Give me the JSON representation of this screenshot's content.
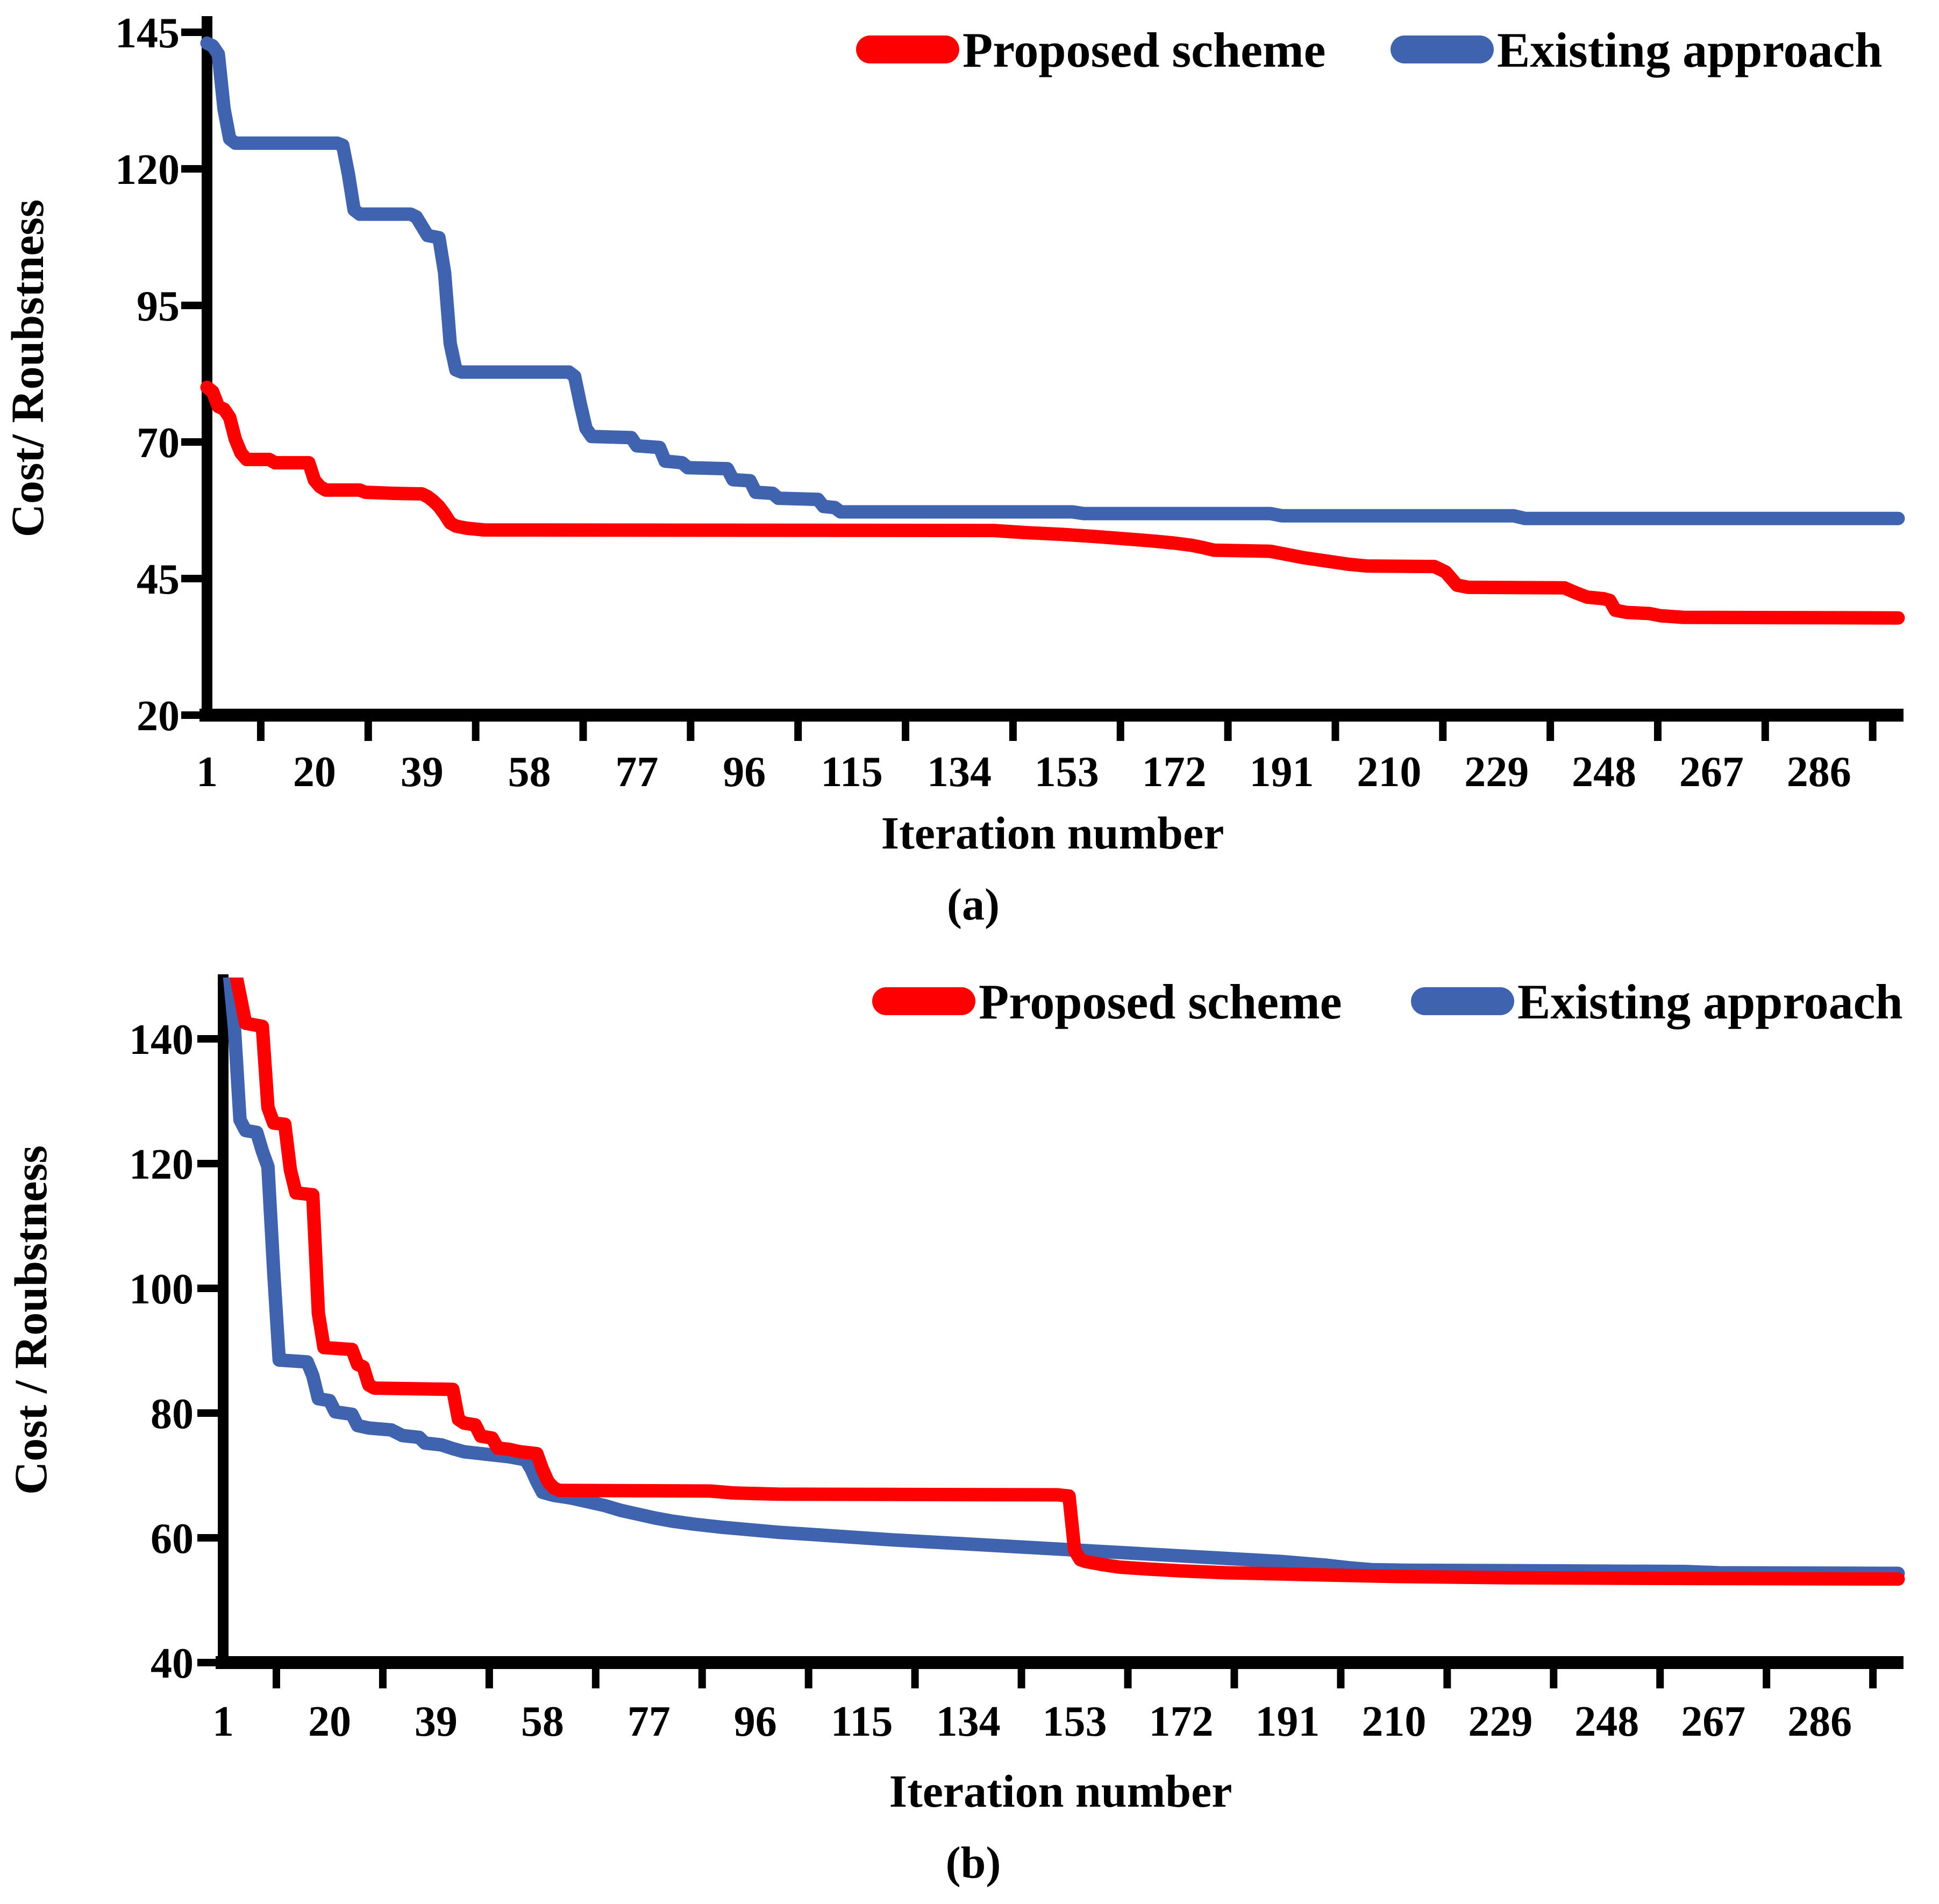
{
  "figure": {
    "background": "#FFFFFF",
    "axis_color": "#000000",
    "accent_red": "#FF0000",
    "accent_blue": "#3F63AE"
  },
  "chart_data": [
    {
      "type": "line",
      "panel": "a",
      "caption": "(a)",
      "xlabel": "Iteration number",
      "ylabel": "Cost/ Roubstness",
      "x_ticks": [
        1,
        20,
        39,
        58,
        77,
        96,
        115,
        134,
        153,
        172,
        191,
        210,
        229,
        248,
        267,
        286
      ],
      "y_ticks": [
        145,
        120,
        95,
        70,
        45,
        20
      ],
      "xlim": [
        1,
        300
      ],
      "ylim": [
        20,
        148
      ],
      "grid": false,
      "legend_position": "top",
      "series": [
        {
          "name": "Proposed scheme",
          "color": "#FF0000",
          "points": [
            [
              1,
              80
            ],
            [
              2,
              79.2
            ],
            [
              3,
              76.5
            ],
            [
              4,
              76
            ],
            [
              5,
              74.5
            ],
            [
              6,
              70.5
            ],
            [
              7,
              68
            ],
            [
              8,
              66.8
            ],
            [
              12,
              66.8
            ],
            [
              13,
              66.2
            ],
            [
              19,
              66.2
            ],
            [
              20,
              63
            ],
            [
              21,
              61.8
            ],
            [
              22,
              61.2
            ],
            [
              28,
              61.2
            ],
            [
              29,
              60.8
            ],
            [
              34,
              60.6
            ],
            [
              39,
              60.5
            ],
            [
              40,
              60
            ],
            [
              41,
              59.2
            ],
            [
              42,
              58.2
            ],
            [
              43,
              56.8
            ],
            [
              44,
              55.2
            ],
            [
              45,
              54.6
            ],
            [
              47,
              54.2
            ],
            [
              50,
              53.9
            ],
            [
              140,
              53.8
            ],
            [
              146,
              53.4
            ],
            [
              152,
              53.1
            ],
            [
              158,
              52.7
            ],
            [
              163,
              52.3
            ],
            [
              168,
              51.9
            ],
            [
              172,
              51.5
            ],
            [
              175,
              51.1
            ],
            [
              177,
              50.7
            ],
            [
              179,
              50.2
            ],
            [
              189,
              50
            ],
            [
              191,
              49.6
            ],
            [
              195,
              48.8
            ],
            [
              199,
              48.2
            ],
            [
              203,
              47.6
            ],
            [
              206,
              47.3
            ],
            [
              218,
              47.2
            ],
            [
              220,
              46.2
            ],
            [
              222,
              43.8
            ],
            [
              224,
              43.4
            ],
            [
              241,
              43.3
            ],
            [
              243,
              42.4
            ],
            [
              245,
              41.6
            ],
            [
              248,
              41.3
            ],
            [
              249,
              41
            ],
            [
              250,
              39.2
            ],
            [
              252,
              38.8
            ],
            [
              256,
              38.6
            ],
            [
              258,
              38.2
            ],
            [
              262,
              37.9
            ],
            [
              300,
              37.8
            ]
          ]
        },
        {
          "name": "Existing approach",
          "color": "#3F63AE",
          "points": [
            [
              1,
              143
            ],
            [
              2,
              142.5
            ],
            [
              3,
              141
            ],
            [
              4,
              131
            ],
            [
              5,
              125.5
            ],
            [
              6,
              124.7
            ],
            [
              24,
              124.7
            ],
            [
              25,
              124.3
            ],
            [
              26,
              119
            ],
            [
              27,
              112.5
            ],
            [
              28,
              111.7
            ],
            [
              37,
              111.7
            ],
            [
              38,
              111.2
            ],
            [
              39,
              109.5
            ],
            [
              40,
              107.8
            ],
            [
              42,
              107.4
            ],
            [
              43,
              101
            ],
            [
              44,
              88
            ],
            [
              45,
              83.2
            ],
            [
              46,
              82.8
            ],
            [
              65,
              82.8
            ],
            [
              66,
              82
            ],
            [
              67,
              77
            ],
            [
              68,
              72.5
            ],
            [
              69,
              71
            ],
            [
              76,
              70.8
            ],
            [
              77,
              69.3
            ],
            [
              81,
              69
            ],
            [
              82,
              66.5
            ],
            [
              85,
              66.2
            ],
            [
              86,
              65.3
            ],
            [
              93,
              65.1
            ],
            [
              94,
              63.1
            ],
            [
              97,
              62.9
            ],
            [
              98,
              60.8
            ],
            [
              101,
              60.6
            ],
            [
              102,
              59.7
            ],
            [
              109,
              59.5
            ],
            [
              110,
              58.2
            ],
            [
              112,
              58
            ],
            [
              113,
              57.2
            ],
            [
              154,
              57.2
            ],
            [
              156,
              56.9
            ],
            [
              189,
              56.9
            ],
            [
              191,
              56.5
            ],
            [
              232,
              56.5
            ],
            [
              234,
              56
            ],
            [
              300,
              56
            ]
          ]
        }
      ]
    },
    {
      "type": "line",
      "panel": "b",
      "caption": "(b)",
      "xlabel": "Iteration number",
      "ylabel": "Cost / Roubstness",
      "x_ticks": [
        1,
        20,
        39,
        58,
        77,
        96,
        115,
        134,
        153,
        172,
        191,
        210,
        229,
        248,
        267,
        286
      ],
      "y_ticks": [
        140,
        120,
        100,
        80,
        60,
        40
      ],
      "xlim": [
        1,
        300
      ],
      "ylim": [
        40,
        150
      ],
      "grid": false,
      "legend_position": "top",
      "series": [
        {
          "name": "Proposed scheme",
          "color": "#FF0000",
          "points": [
            [
              1,
              151.5
            ],
            [
              3,
              151.5
            ],
            [
              4,
              147
            ],
            [
              5,
              142.5
            ],
            [
              8,
              142
            ],
            [
              9,
              129
            ],
            [
              10,
              126.5
            ],
            [
              12,
              126.3
            ],
            [
              13,
              119
            ],
            [
              14,
              115.3
            ],
            [
              17,
              115
            ],
            [
              18,
              96
            ],
            [
              19,
              90.5
            ],
            [
              24,
              90.2
            ],
            [
              25,
              87.8
            ],
            [
              26,
              87.4
            ],
            [
              27,
              84.5
            ],
            [
              28,
              84
            ],
            [
              42,
              83.8
            ],
            [
              43,
              79
            ],
            [
              44,
              78.4
            ],
            [
              46,
              78.1
            ],
            [
              47,
              76.3
            ],
            [
              49,
              76
            ],
            [
              50,
              74.4
            ],
            [
              52,
              74.2
            ],
            [
              54,
              73.8
            ],
            [
              57,
              73.5
            ],
            [
              58,
              71
            ],
            [
              59,
              69
            ],
            [
              60,
              68
            ],
            [
              61,
              67.6
            ],
            [
              88,
              67.5
            ],
            [
              92,
              67.2
            ],
            [
              100,
              67
            ],
            [
              150,
              66.9
            ],
            [
              152,
              66.7
            ],
            [
              153,
              58
            ],
            [
              154,
              56.5
            ],
            [
              155,
              56.2
            ],
            [
              158,
              55.7
            ],
            [
              161,
              55.3
            ],
            [
              166,
              55
            ],
            [
              172,
              54.7
            ],
            [
              180,
              54.4
            ],
            [
              190,
              54.2
            ],
            [
              200,
              54
            ],
            [
              210,
              53.8
            ],
            [
              230,
              53.6
            ],
            [
              255,
              53.5
            ],
            [
              300,
              53.4
            ]
          ]
        },
        {
          "name": "Existing approach",
          "color": "#3F63AE",
          "points": [
            [
              1,
              151.5
            ],
            [
              2,
              151.5
            ],
            [
              3,
              142
            ],
            [
              4,
              127
            ],
            [
              5,
              125.3
            ],
            [
              7,
              125
            ],
            [
              8,
              122
            ],
            [
              9,
              119.5
            ],
            [
              10,
              103
            ],
            [
              11,
              88.5
            ],
            [
              16,
              88.2
            ],
            [
              17,
              86
            ],
            [
              18,
              82.3
            ],
            [
              20,
              82
            ],
            [
              21,
              80.2
            ],
            [
              24,
              79.8
            ],
            [
              25,
              78
            ],
            [
              27,
              77.6
            ],
            [
              31,
              77.3
            ],
            [
              33,
              76.4
            ],
            [
              36,
              76.1
            ],
            [
              37,
              75.2
            ],
            [
              40,
              74.9
            ],
            [
              42,
              74.3
            ],
            [
              44,
              73.8
            ],
            [
              48,
              73.4
            ],
            [
              52,
              73
            ],
            [
              55,
              72.5
            ],
            [
              56,
              71
            ],
            [
              57,
              69
            ],
            [
              58,
              67.3
            ],
            [
              60,
              66.8
            ],
            [
              63,
              66.4
            ],
            [
              66,
              65.8
            ],
            [
              69,
              65.2
            ],
            [
              72,
              64.4
            ],
            [
              75,
              63.8
            ],
            [
              78,
              63.2
            ],
            [
              81,
              62.7
            ],
            [
              85,
              62.2
            ],
            [
              90,
              61.7
            ],
            [
              95,
              61.3
            ],
            [
              100,
              60.9
            ],
            [
              105,
              60.6
            ],
            [
              110,
              60.3
            ],
            [
              115,
              60
            ],
            [
              120,
              59.7
            ],
            [
              126,
              59.4
            ],
            [
              132,
              59.1
            ],
            [
              138,
              58.8
            ],
            [
              144,
              58.5
            ],
            [
              150,
              58.2
            ],
            [
              156,
              57.9
            ],
            [
              162,
              57.6
            ],
            [
              168,
              57.3
            ],
            [
              174,
              57
            ],
            [
              178,
              56.8
            ],
            [
              184,
              56.5
            ],
            [
              190,
              56.2
            ],
            [
              194,
              55.9
            ],
            [
              198,
              55.6
            ],
            [
              202,
              55.2
            ],
            [
              206,
              54.9
            ],
            [
              212,
              54.8
            ],
            [
              240,
              54.7
            ],
            [
              262,
              54.6
            ],
            [
              268,
              54.4
            ],
            [
              300,
              54.3
            ]
          ]
        }
      ]
    }
  ]
}
